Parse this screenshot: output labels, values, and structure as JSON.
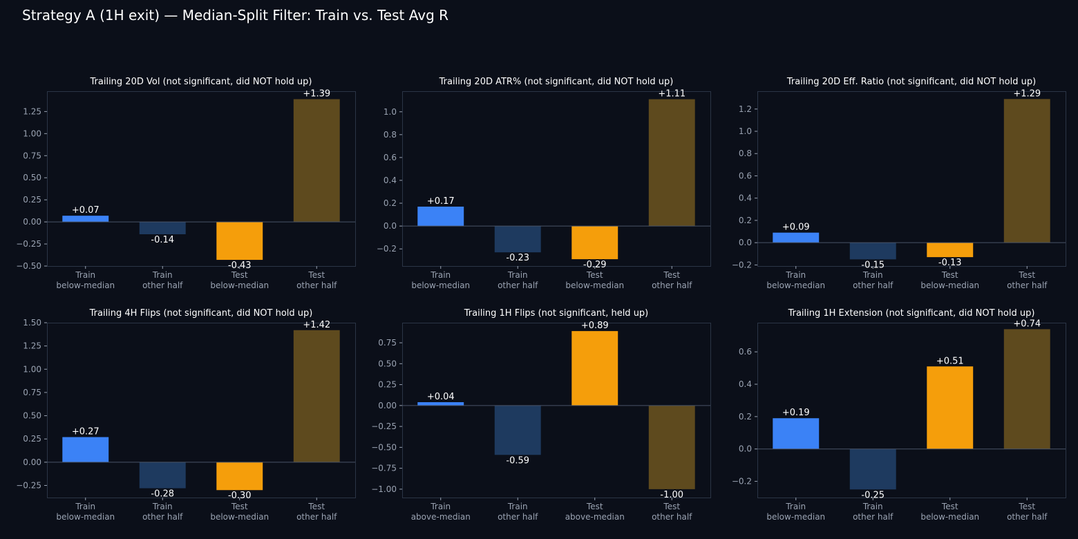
{
  "suptitle": "Strategy A (1H exit) — Median-Split Filter: Train vs. Test Avg R",
  "colors": {
    "background": "#0b0f19",
    "axes_border": "#2b3546",
    "zero_line": "#4a5568",
    "tick_text": "#9aa3b2",
    "title_text": "#ffffff",
    "value_text": "#ffffff",
    "bar_colors": [
      "#3b82f6",
      "#1e3a5f",
      "#f59e0b",
      "#5e4a1e"
    ]
  },
  "chart_data": [
    {
      "type": "bar",
      "title": "Trailing 20D Vol (not significant, did NOT hold up)",
      "categories": [
        [
          "Train",
          "below-median"
        ],
        [
          "Train",
          "other half"
        ],
        [
          "Test",
          "below-median"
        ],
        [
          "Test",
          "other half"
        ]
      ],
      "values": [
        0.07,
        -0.14,
        -0.43,
        1.39
      ],
      "value_labels": [
        "+0.07",
        "-0.14",
        "-0.43",
        "+1.39"
      ],
      "ylim": [
        -0.5,
        1.48
      ],
      "yticks": [
        -0.5,
        -0.25,
        0.0,
        0.25,
        0.5,
        0.75,
        1.0,
        1.25
      ],
      "ytick_labels": [
        "−0.50",
        "−0.25",
        "0.00",
        "0.25",
        "0.50",
        "0.75",
        "1.00",
        "1.25"
      ]
    },
    {
      "type": "bar",
      "title": "Trailing 20D ATR% (not significant, did NOT hold up)",
      "categories": [
        [
          "Train",
          "below-median"
        ],
        [
          "Train",
          "other half"
        ],
        [
          "Test",
          "below-median"
        ],
        [
          "Test",
          "other half"
        ]
      ],
      "values": [
        0.17,
        -0.23,
        -0.29,
        1.11
      ],
      "value_labels": [
        "+0.17",
        "-0.23",
        "-0.29",
        "+1.11"
      ],
      "ylim": [
        -0.35,
        1.18
      ],
      "yticks": [
        -0.2,
        0.0,
        0.2,
        0.4,
        0.6,
        0.8,
        1.0
      ],
      "ytick_labels": [
        "−0.2",
        "0.0",
        "0.2",
        "0.4",
        "0.6",
        "0.8",
        "1.0"
      ]
    },
    {
      "type": "bar",
      "title": "Trailing 20D Eff. Ratio (not significant, did NOT hold up)",
      "categories": [
        [
          "Train",
          "below-median"
        ],
        [
          "Train",
          "other half"
        ],
        [
          "Test",
          "below-median"
        ],
        [
          "Test",
          "other half"
        ]
      ],
      "values": [
        0.09,
        -0.15,
        -0.13,
        1.29
      ],
      "value_labels": [
        "+0.09",
        "-0.15",
        "-0.13",
        "+1.29"
      ],
      "ylim": [
        -0.21,
        1.36
      ],
      "yticks": [
        -0.2,
        0.0,
        0.2,
        0.4,
        0.6,
        0.8,
        1.0,
        1.2
      ],
      "ytick_labels": [
        "−0.2",
        "0.0",
        "0.2",
        "0.4",
        "0.6",
        "0.8",
        "1.0",
        "1.2"
      ]
    },
    {
      "type": "bar",
      "title": "Trailing 4H Flips (not significant, did NOT hold up)",
      "categories": [
        [
          "Train",
          "below-median"
        ],
        [
          "Train",
          "other half"
        ],
        [
          "Test",
          "below-median"
        ],
        [
          "Test",
          "other half"
        ]
      ],
      "values": [
        0.27,
        -0.28,
        -0.3,
        1.42
      ],
      "value_labels": [
        "+0.27",
        "-0.28",
        "-0.30",
        "+1.42"
      ],
      "ylim": [
        -0.38,
        1.5
      ],
      "yticks": [
        -0.25,
        0.0,
        0.25,
        0.5,
        0.75,
        1.0,
        1.25,
        1.5
      ],
      "ytick_labels": [
        "−0.25",
        "0.00",
        "0.25",
        "0.50",
        "0.75",
        "1.00",
        "1.25",
        "1.50"
      ]
    },
    {
      "type": "bar",
      "title": "Trailing 1H Flips (not significant, held up)",
      "categories": [
        [
          "Train",
          "above-median"
        ],
        [
          "Train",
          "other half"
        ],
        [
          "Test",
          "above-median"
        ],
        [
          "Test",
          "other half"
        ]
      ],
      "values": [
        0.04,
        -0.59,
        0.89,
        -1.0
      ],
      "value_labels": [
        "+0.04",
        "-0.59",
        "+0.89",
        "-1.00"
      ],
      "ylim": [
        -1.1,
        0.99
      ],
      "yticks": [
        -1.0,
        -0.75,
        -0.5,
        -0.25,
        0.0,
        0.25,
        0.5,
        0.75
      ],
      "ytick_labels": [
        "−1.00",
        "−0.75",
        "−0.50",
        "−0.25",
        "0.00",
        "0.25",
        "0.50",
        "0.75"
      ]
    },
    {
      "type": "bar",
      "title": "Trailing 1H Extension (not significant, did NOT hold up)",
      "categories": [
        [
          "Train",
          "below-median"
        ],
        [
          "Train",
          "other half"
        ],
        [
          "Test",
          "below-median"
        ],
        [
          "Test",
          "other half"
        ]
      ],
      "values": [
        0.19,
        -0.25,
        0.51,
        0.74
      ],
      "value_labels": [
        "+0.19",
        "-0.25",
        "+0.51",
        "+0.74"
      ],
      "ylim": [
        -0.3,
        0.78
      ],
      "yticks": [
        -0.2,
        0.0,
        0.2,
        0.4,
        0.6
      ],
      "ytick_labels": [
        "−0.2",
        "0.0",
        "0.2",
        "0.4",
        "0.6"
      ]
    }
  ]
}
